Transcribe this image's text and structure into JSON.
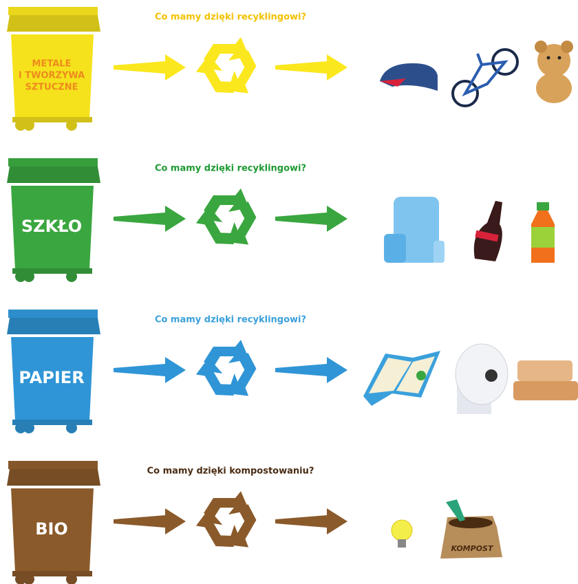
{
  "rows": [
    {
      "bin_label": [
        "METALE",
        "I TWORZYWA",
        "SZTUCZNE"
      ],
      "question": "Co mamy dzięki recyklingowi?",
      "color": "#f6e21c",
      "text_color": "#f2c200",
      "label_color": "#ec8a1c"
    },
    {
      "bin_label": [
        "SZKŁO"
      ],
      "question": "Co mamy dzięki recyklingowi?",
      "color": "#3aa63f",
      "text_color": "#1e9a33",
      "label_color": "#ffffff"
    },
    {
      "bin_label": [
        "PAPIER"
      ],
      "question": "Co mamy dzięki recyklingowi?",
      "color": "#2f95d6",
      "text_color": "#3aa0dc",
      "label_color": "#ffffff"
    },
    {
      "bin_label": [
        "BIO"
      ],
      "question": "Co mamy dzięki kompostowaniu?",
      "color": "#8b5a2b",
      "text_color": "#4a2c12",
      "label_color": "#ffffff",
      "sack_label": "KOMPOST"
    }
  ]
}
